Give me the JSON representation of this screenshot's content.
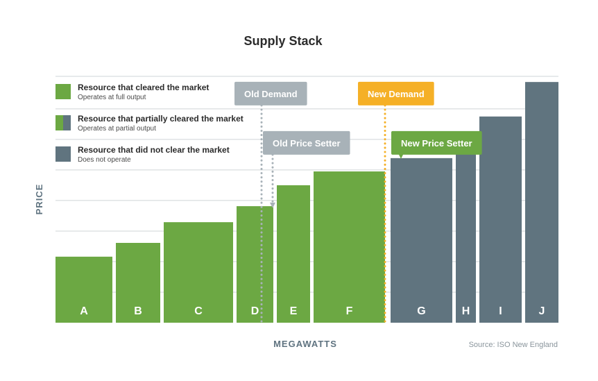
{
  "chart_data": {
    "type": "bar",
    "title": "Supply Stack",
    "xlabel": "MEGAWATTS",
    "ylabel": "PRICE",
    "source": "Source: ISO New England",
    "ylim": [
      0,
      100
    ],
    "bars": [
      {
        "label": "A",
        "start": 0,
        "width": 82,
        "price": 26.8,
        "status": "cleared"
      },
      {
        "label": "B",
        "start": 87,
        "width": 64,
        "price": 32.4,
        "status": "cleared"
      },
      {
        "label": "C",
        "start": 156,
        "width": 100,
        "price": 40.8,
        "status": "cleared"
      },
      {
        "label": "D",
        "start": 261,
        "width": 53,
        "price": 47.3,
        "status": "cleared"
      },
      {
        "label": "E",
        "start": 319,
        "width": 48,
        "price": 55.8,
        "status": "cleared"
      },
      {
        "label": "F",
        "start": 372,
        "width": 103,
        "price": 61.4,
        "status": "cleared"
      },
      {
        "label": "G",
        "start": 483,
        "width": 89,
        "price": 66.8,
        "status": "not-cleared"
      },
      {
        "label": "H",
        "start": 577,
        "width": 29,
        "price": 72.4,
        "status": "not-cleared"
      },
      {
        "label": "I",
        "start": 611,
        "width": 61,
        "price": 83.7,
        "status": "not-cleared"
      },
      {
        "label": "J",
        "start": 677,
        "width": 48,
        "price": 97.7,
        "status": "not-cleared"
      }
    ],
    "gridlines": [
      12.4,
      24.8,
      37.2,
      49.6,
      62.0,
      74.4,
      86.8,
      100
    ],
    "xmax": 725,
    "markers": [
      {
        "label": "Old Demand",
        "x": 297,
        "y_top": 93,
        "y_end": 0,
        "color": "#a8b2b8",
        "style": "dotted"
      },
      {
        "label": "Old Price Setter",
        "x": 313,
        "y_top": 73,
        "y_end": 46.5,
        "color": "#a8b2b8",
        "style": "arrow"
      },
      {
        "label": "New Demand",
        "x": 475,
        "y_top": 93,
        "y_end": 0,
        "color": "#f5b027",
        "style": "dotted"
      },
      {
        "label": "New Price Setter",
        "x": 498,
        "y_top": 73,
        "y_end": 66.5,
        "color": "#6ca843",
        "style": "arrow"
      }
    ],
    "legend": [
      {
        "title": "Resource that cleared the market",
        "subtitle": "Operates at full output",
        "swatch": "cleared"
      },
      {
        "title": "Resource that partially cleared the market",
        "subtitle": "Operates at partial output",
        "swatch": "partial"
      },
      {
        "title": "Resource that did not clear the market",
        "subtitle": "Does not operate",
        "swatch": "not-cleared"
      }
    ],
    "colors": {
      "cleared": "#6ca843",
      "not-cleared": "#60747f",
      "grid": "#cfd4d7",
      "old": "#a8b2b8",
      "new_demand": "#f5b027",
      "new_setter": "#6ca843"
    }
  }
}
